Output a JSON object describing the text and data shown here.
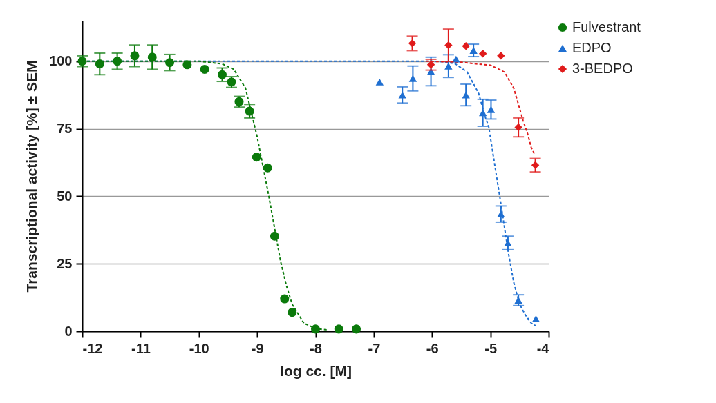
{
  "chart_data": {
    "type": "scatter",
    "xlabel": "log cc. [M]",
    "ylabel": "Transcriptional activity [%] ± SEM",
    "xlim": [
      -12,
      -4
    ],
    "xticks": [
      -12,
      -11,
      -10,
      -9,
      -8,
      -7,
      -6,
      -5,
      -4
    ],
    "ylim": [
      0,
      115
    ],
    "yticks": [
      0,
      25,
      50,
      75,
      100
    ],
    "grid": "y",
    "legend": "top right",
    "series": [
      {
        "type": "line",
        "color": "#1f6fd1",
        "line_style": "dashed",
        "marker": "none",
        "x": [
          -12,
          -10,
          -8,
          -6,
          -5.8,
          -5.6,
          -5.4,
          -5.2,
          -5.1,
          -5.03,
          -4.9,
          -4.83,
          -4.7,
          -4.6,
          -4.5,
          -4.4,
          -4.3,
          -4.22
        ],
        "values": [
          100,
          100,
          100,
          100,
          99.8,
          99,
          96,
          88,
          80,
          75.8,
          58,
          48.5,
          30,
          18,
          10,
          6,
          3,
          2
        ]
      },
      {
        "type": "line",
        "color": "#e01b1b",
        "line_style": "dashed",
        "marker": "none",
        "x": [
          -6.1,
          -5.5,
          -5.0,
          -4.76,
          -4.6,
          -4.52,
          -4.44,
          -4.36,
          -4.3,
          -4.24
        ],
        "values": [
          100,
          99.6,
          98.5,
          96,
          90,
          84,
          78,
          73,
          68,
          65.5
        ]
      },
      {
        "type": "line",
        "color": "#0b7a0b",
        "line_style": "dashed",
        "marker": "none",
        "x": [
          -12,
          -10,
          -9.6,
          -9.4,
          -9.2,
          -9.0,
          -8.8,
          -8.7,
          -8.6,
          -8.5,
          -8.4,
          -8.2,
          -8.0,
          -7.8
        ],
        "values": [
          100,
          100,
          99,
          97,
          90,
          72,
          50,
          38,
          26,
          17,
          10,
          3,
          1,
          0.5
        ]
      },
      {
        "name": "Fulvestrant",
        "color": "#0b7a0b",
        "marker": "circle",
        "x": [
          -12,
          -11.7,
          -11.4,
          -11.1,
          -10.8,
          -10.5,
          -10.2,
          -9.9,
          -9.6,
          -9.44,
          -9.31,
          -9.13,
          -9.01,
          -8.82,
          -8.7,
          -8.53,
          -8.4,
          -8.0,
          -7.6,
          -7.3
        ],
        "values": [
          100,
          99,
          100,
          102,
          101.5,
          99.5,
          98.7,
          97,
          95,
          92.3,
          85,
          81.5,
          64.5,
          60.5,
          35.2,
          12,
          7,
          0.8,
          0.8,
          0.8
        ],
        "errors": [
          2,
          4,
          3,
          4,
          4.5,
          3,
          null,
          null,
          2.5,
          2,
          2,
          2.5,
          null,
          null,
          null,
          null,
          null,
          null,
          null,
          null
        ]
      },
      {
        "name": "EDPO",
        "color": "#1f6fd1",
        "marker": "triangle",
        "x": [
          -6.9,
          -6.51,
          -6.33,
          -6.02,
          -5.72,
          -5.59,
          -5.42,
          -5.29,
          -5.13,
          -4.99,
          -4.82,
          -4.7,
          -4.52,
          -4.22
        ],
        "values": [
          92.3,
          87.5,
          93.6,
          96.2,
          98.2,
          100.8,
          87.5,
          104,
          80.9,
          82.1,
          43.4,
          32.7,
          11.5,
          4.6
        ],
        "errors": [
          null,
          3,
          4.6,
          5.3,
          4.2,
          null,
          4,
          2.3,
          5,
          3.5,
          3,
          2.5,
          2,
          null
        ]
      },
      {
        "name": "3-BEDPO",
        "color": "#e01b1b",
        "marker": "diamond",
        "x": [
          -6.34,
          -6.02,
          -5.72,
          -5.42,
          -5.13,
          -4.82,
          -4.52,
          -4.23
        ],
        "values": [
          106.6,
          98.7,
          105.9,
          105.6,
          102.8,
          102,
          75.5,
          61.5
        ],
        "errors": [
          2.7,
          2,
          6,
          null,
          null,
          null,
          3.5,
          2.5
        ]
      }
    ]
  }
}
